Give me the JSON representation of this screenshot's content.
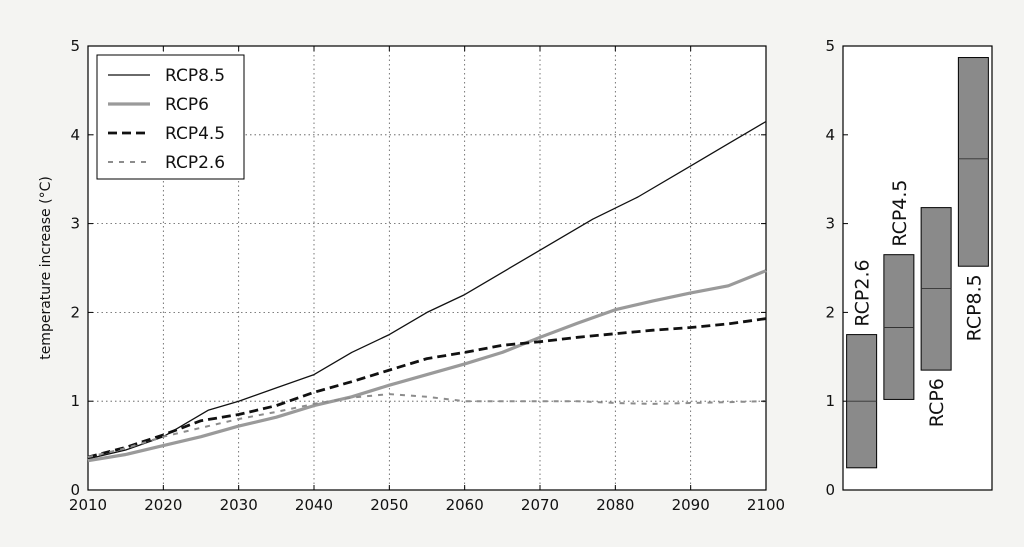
{
  "chart_data": [
    {
      "type": "line",
      "title": "",
      "xlabel": "",
      "ylabel": "temperature increase (°C)",
      "xlim": [
        2010,
        2100
      ],
      "ylim": [
        0,
        5
      ],
      "xticks": [
        "2010",
        "2020",
        "2030",
        "2040",
        "2050",
        "2060",
        "2070",
        "2080",
        "2090",
        "2100"
      ],
      "yticks": [
        "0",
        "1",
        "2",
        "3",
        "4",
        "5"
      ],
      "grid": true,
      "legend_position": "top-left",
      "series": [
        {
          "name": "RCP8.5",
          "style": "solid-thin",
          "color": "#111111",
          "x": [
            2010,
            2015,
            2020,
            2026,
            2030,
            2035,
            2040,
            2045,
            2050,
            2055,
            2060,
            2065,
            2070,
            2077,
            2083,
            2090,
            2095,
            2100
          ],
          "y": [
            0.35,
            0.45,
            0.6,
            0.9,
            1.0,
            1.15,
            1.3,
            1.55,
            1.75,
            2.0,
            2.2,
            2.45,
            2.7,
            3.05,
            3.3,
            3.65,
            3.9,
            4.15
          ]
        },
        {
          "name": "RCP6",
          "style": "solid-thick-grey",
          "color": "#9a9a9a",
          "x": [
            2010,
            2015,
            2020,
            2025,
            2030,
            2035,
            2040,
            2045,
            2050,
            2055,
            2060,
            2065,
            2070,
            2075,
            2080,
            2085,
            2090,
            2095,
            2100
          ],
          "y": [
            0.33,
            0.4,
            0.5,
            0.6,
            0.72,
            0.82,
            0.95,
            1.05,
            1.18,
            1.3,
            1.42,
            1.55,
            1.72,
            1.88,
            2.03,
            2.13,
            2.22,
            2.3,
            2.47
          ]
        },
        {
          "name": "RCP4.5",
          "style": "dashed-thick",
          "color": "#111111",
          "x": [
            2010,
            2015,
            2020,
            2025,
            2030,
            2035,
            2040,
            2045,
            2050,
            2055,
            2060,
            2065,
            2070,
            2075,
            2080,
            2085,
            2090,
            2095,
            2100
          ],
          "y": [
            0.37,
            0.48,
            0.62,
            0.78,
            0.85,
            0.95,
            1.1,
            1.22,
            1.35,
            1.48,
            1.55,
            1.63,
            1.67,
            1.72,
            1.76,
            1.8,
            1.83,
            1.87,
            1.93
          ]
        },
        {
          "name": "RCP2.6",
          "style": "dashed-thin-grey",
          "color": "#8c8c8c",
          "x": [
            2010,
            2015,
            2020,
            2025,
            2030,
            2035,
            2040,
            2045,
            2050,
            2055,
            2060,
            2065,
            2070,
            2075,
            2080,
            2085,
            2090,
            2095,
            2100
          ],
          "y": [
            0.37,
            0.47,
            0.6,
            0.7,
            0.8,
            0.88,
            0.97,
            1.04,
            1.08,
            1.05,
            1.0,
            1.0,
            1.0,
            1.0,
            0.98,
            0.97,
            0.98,
            0.99,
            1.0
          ]
        }
      ]
    },
    {
      "type": "range-bar",
      "title": "",
      "xlabel": "",
      "ylabel": "",
      "ylim": [
        0,
        5
      ],
      "yticks": [
        "0",
        "1",
        "2",
        "3",
        "4",
        "5"
      ],
      "grid": false,
      "bars": [
        {
          "name": "RCP2.6",
          "low": 0.25,
          "high": 1.75,
          "mid": 1.0
        },
        {
          "name": "RCP4.5",
          "low": 1.02,
          "high": 2.65,
          "mid": 1.83
        },
        {
          "name": "RCP6",
          "low": 1.35,
          "high": 3.18,
          "mid": 2.27
        },
        {
          "name": "RCP8.5",
          "low": 2.52,
          "high": 4.87,
          "mid": 3.73
        }
      ],
      "bar_fill": "#8a8a8a"
    }
  ]
}
